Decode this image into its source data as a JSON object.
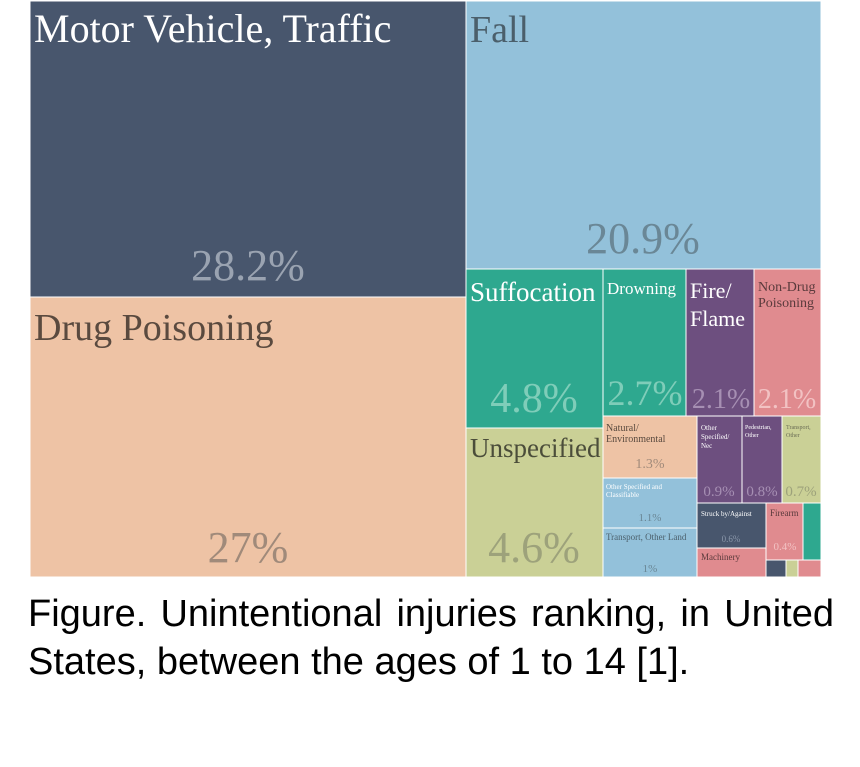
{
  "chart_data": {
    "type": "treemap",
    "categories": [
      "Motor Vehicle, Traffic",
      "Fall",
      "Drug Poisoning",
      "Suffocation",
      "Drowning",
      "Fire/ Flame",
      "Non-Drug Poisoning",
      "Unspecified",
      "Natural/ Environmental",
      "Other Specified/ Nec",
      "Pedestrian, Other",
      "Transport, Other",
      "Other Specified and Classifiable",
      "Transport, Other Land",
      "Struck by/Against",
      "Firearm",
      "Machinery"
    ],
    "values": [
      28.2,
      20.9,
      27,
      4.8,
      2.7,
      2.1,
      2.1,
      4.6,
      1.3,
      0.9,
      0.8,
      0.7,
      1.1,
      1,
      0.6,
      0.4,
      null
    ],
    "value_labels": [
      "28.2%",
      "20.9%",
      "27%",
      "4.8%",
      "2.7%",
      "2.1%",
      "2.1%",
      "4.6%",
      "1.3%",
      "0.9%",
      "0.8%",
      "0.7%",
      "1.1%",
      "1%",
      "0.6%",
      "0.4%",
      ""
    ],
    "colors": [
      "#48566d",
      "#93c1da",
      "#eec3a5",
      "#2ea88f",
      "#2ea88f",
      "#6d4f7f",
      "#e08b8f",
      "#cad096",
      "#eec3a5",
      "#6d4f7f",
      "#6d4f7f",
      "#cad096",
      "#93c1da",
      "#93c1da",
      "#48566d",
      "#e08b8f",
      "#e08b8f"
    ],
    "small_tiles": [
      "#2ea88f",
      "#48566d",
      "#cad096",
      "#e08b8f"
    ]
  },
  "caption": "Figure. Unintentional injuries ranking, in United States, between the ages of 1 to 14 [1]."
}
